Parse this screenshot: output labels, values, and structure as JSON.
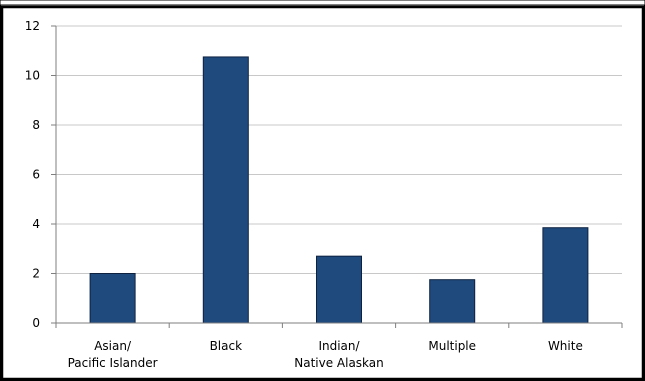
{
  "chart_data": {
    "type": "bar",
    "title": "",
    "xlabel": "",
    "ylabel": "",
    "categories": [
      [
        "Asian/",
        "Pacific Islander"
      ],
      [
        "Black"
      ],
      [
        "Indian/",
        "Native Alaskan"
      ],
      [
        "Multiple"
      ],
      [
        "White"
      ]
    ],
    "values": [
      2.0,
      10.75,
      2.7,
      1.75,
      3.85
    ],
    "ylim": [
      0,
      12
    ],
    "yticks": [
      "0",
      "2",
      "4",
      "6",
      "8",
      "10",
      "12"
    ],
    "grid": true,
    "legend": "none",
    "colors": {
      "bar": "#1f4a7e",
      "bar_border": "#0e2240",
      "grid": "#c8c8c8",
      "axis": "#7f7f7f",
      "frame": "#000000",
      "background": "#ffffff"
    }
  }
}
